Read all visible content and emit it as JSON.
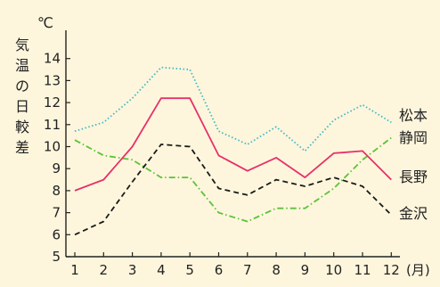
{
  "chart_data": {
    "type": "line",
    "ylabel": "気温の日較差",
    "yunit": "℃",
    "xunit": "(月)",
    "x": [
      1,
      2,
      3,
      4,
      5,
      6,
      7,
      8,
      9,
      10,
      11,
      12
    ],
    "ylim": [
      5,
      14
    ],
    "yticks": [
      5,
      6,
      7,
      8,
      9,
      10,
      11,
      12,
      13,
      14
    ],
    "grid": false,
    "series": [
      {
        "name": "松本",
        "color": "#3fb8c6",
        "dash": "dotted",
        "values": [
          10.7,
          11.1,
          12.2,
          13.6,
          13.5,
          10.7,
          10.1,
          10.9,
          9.8,
          11.2,
          11.9,
          11.1
        ]
      },
      {
        "name": "静岡",
        "color": "#5cc23a",
        "dash": "dashdot",
        "values": [
          10.3,
          9.6,
          9.4,
          8.6,
          8.6,
          7.0,
          6.6,
          7.2,
          7.2,
          8.1,
          9.4,
          10.4
        ]
      },
      {
        "name": "長野",
        "color": "#e8306b",
        "dash": "solid",
        "values": [
          8.0,
          8.5,
          10.0,
          12.2,
          12.2,
          9.6,
          8.9,
          9.5,
          8.6,
          9.7,
          9.8,
          8.5
        ]
      },
      {
        "name": "金沢",
        "color": "#1a1a1a",
        "dash": "dashed",
        "values": [
          6.0,
          6.6,
          8.4,
          10.1,
          10.0,
          8.1,
          7.8,
          8.5,
          8.2,
          8.6,
          8.2,
          6.9
        ]
      }
    ]
  }
}
